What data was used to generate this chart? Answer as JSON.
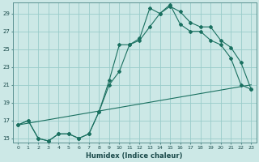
{
  "xlabel": "Humidex (Indice chaleur)",
  "bg_color": "#cce8e6",
  "grid_color": "#99ccca",
  "line_color": "#1a7060",
  "xlim": [
    -0.5,
    23.5
  ],
  "ylim": [
    14.5,
    30.2
  ],
  "yticks": [
    15,
    17,
    19,
    21,
    23,
    25,
    27,
    29
  ],
  "xticks": [
    0,
    1,
    2,
    3,
    4,
    5,
    6,
    7,
    8,
    9,
    10,
    11,
    12,
    13,
    14,
    15,
    16,
    17,
    18,
    19,
    20,
    21,
    22,
    23
  ],
  "line1_x": [
    0,
    1,
    2,
    3,
    4,
    5,
    6,
    7,
    8,
    9,
    10,
    11,
    12,
    13,
    14,
    15,
    16,
    17,
    18,
    19,
    20,
    21,
    22,
    23
  ],
  "line1_y": [
    16.5,
    17.0,
    15.0,
    14.7,
    15.5,
    15.5,
    15.0,
    15.5,
    18.0,
    21.0,
    22.5,
    25.5,
    26.2,
    29.6,
    29.0,
    29.8,
    29.2,
    28.0,
    27.5,
    27.5,
    26.0,
    25.2,
    23.5,
    20.5
  ],
  "line2_x": [
    0,
    1,
    2,
    3,
    4,
    5,
    6,
    7,
    8,
    9,
    10,
    11,
    12,
    13,
    14,
    15,
    16,
    17,
    18,
    19,
    20,
    21,
    22,
    23
  ],
  "line2_y": [
    16.5,
    17.0,
    15.0,
    14.7,
    15.5,
    15.5,
    15.0,
    15.5,
    18.0,
    21.5,
    25.5,
    25.5,
    26.0,
    27.5,
    29.0,
    30.0,
    27.8,
    27.0,
    27.0,
    26.0,
    25.5,
    24.0,
    21.0,
    20.5
  ],
  "line3_x": [
    0,
    23
  ],
  "line3_y": [
    16.5,
    21.0
  ]
}
